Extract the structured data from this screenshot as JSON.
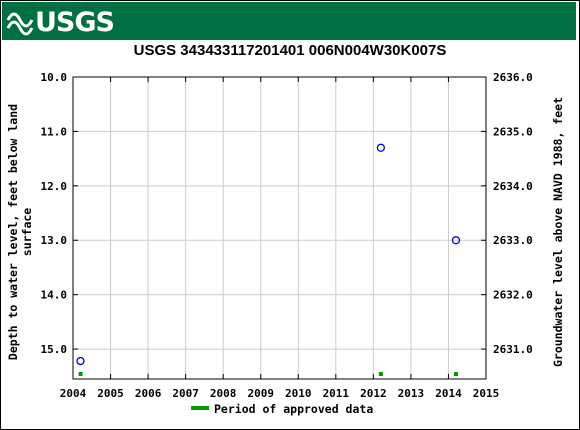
{
  "header": {
    "logo_text": "USGS",
    "brand_color": "#006f41"
  },
  "chart_data": {
    "type": "scatter",
    "title": "USGS 343433117201401 006N004W30K007S",
    "xlabel": "",
    "ylabel_left": "Depth to water level, feet below land surface",
    "ylabel_right": "Groundwater level above NAVD 1988, feet",
    "x_ticks": [
      "2004",
      "2005",
      "2006",
      "2007",
      "2008",
      "2009",
      "2010",
      "2011",
      "2012",
      "2013",
      "2014",
      "2015"
    ],
    "y_left_ticks": [
      "10.0",
      "11.0",
      "12.0",
      "13.0",
      "14.0",
      "15.0"
    ],
    "y_right_ticks": [
      "2636.0",
      "2635.0",
      "2634.0",
      "2633.0",
      "2632.0",
      "2631.0"
    ],
    "xlim": [
      2004.0,
      2015.0
    ],
    "ylim_left": [
      10.0,
      15.55
    ],
    "ylim_right": [
      2636.0,
      2630.45
    ],
    "left_axis_inverted": true,
    "grid": true,
    "legend_placement": "bottom-center",
    "point_color": "#0000cc",
    "approved_color": "#009900",
    "series": [
      {
        "name": "",
        "points": [
          {
            "x": 2004.2,
            "y": 15.22
          },
          {
            "x": 2012.2,
            "y": 11.3
          },
          {
            "x": 2014.2,
            "y": 13.0
          }
        ]
      }
    ],
    "approved_periods": [
      {
        "x": 2004.2
      },
      {
        "x": 2012.2
      },
      {
        "x": 2014.2
      }
    ],
    "legend": [
      {
        "label": "Period of approved data",
        "color": "#009900"
      }
    ]
  }
}
